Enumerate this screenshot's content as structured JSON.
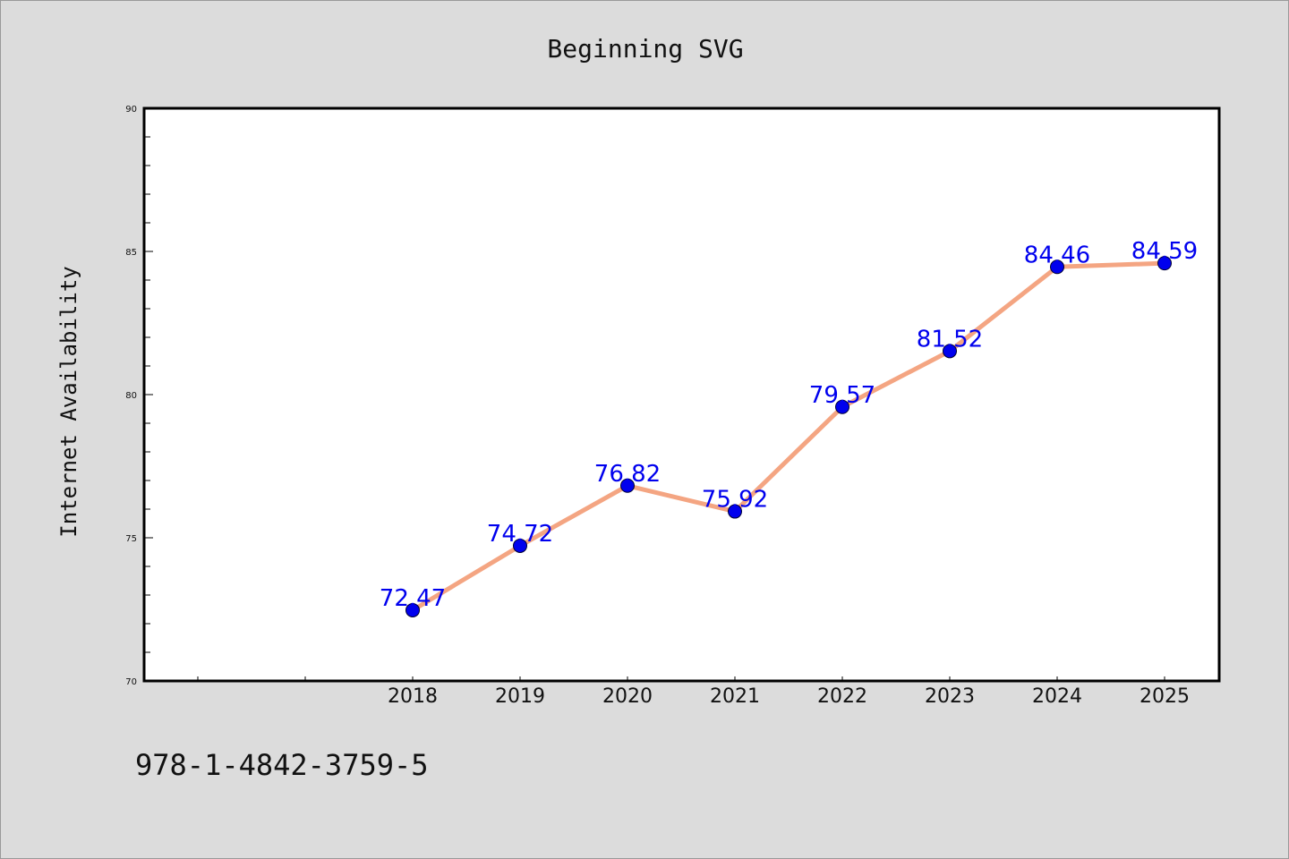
{
  "chart_data": {
    "type": "line",
    "title": "Beginning SVG",
    "xlabel": "",
    "ylabel": "Internet Availability",
    "categories": [
      "2018",
      "2019",
      "2020",
      "2021",
      "2022",
      "2023",
      "2024",
      "2025"
    ],
    "series": [
      {
        "values": [
          72.47,
          74.72,
          76.82,
          75.92,
          79.57,
          81.52,
          84.46,
          84.59
        ]
      }
    ],
    "ylim": [
      70,
      90
    ],
    "yticks": [
      "70",
      "75",
      "80",
      "85",
      "90"
    ],
    "grid": false,
    "data_labels": true,
    "colors": {
      "line": "#f4a582",
      "marker": "#0000ee",
      "label": "#0000ee",
      "plot_background": "#ffffff",
      "page_background": "#dcdcdc"
    }
  },
  "footer": {
    "isbn": "978-1-4842-3759-5"
  }
}
